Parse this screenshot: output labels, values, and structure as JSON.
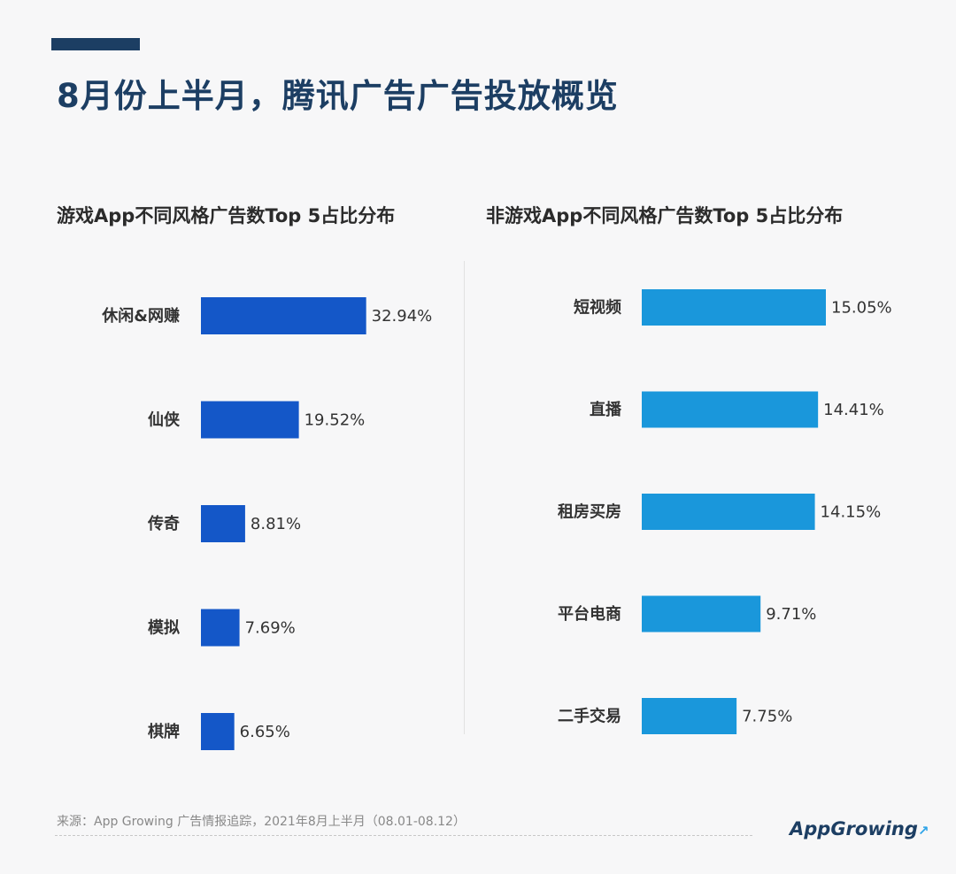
{
  "page": {
    "title": "8月份上半月，腾讯广告广告投放概览",
    "source": "来源：App Growing 广告情报追踪，2021年8月上半月（08.01-08.12）",
    "logo_text": "AppGrowing",
    "accent_color": "#1c3e63"
  },
  "chart_data": [
    {
      "type": "bar",
      "orientation": "horizontal",
      "title": "游戏App不同风格广告数Top 5占比分布",
      "categories": [
        "休闲&网赚",
        "仙侠",
        "传奇",
        "模拟",
        "棋牌"
      ],
      "values": [
        32.94,
        19.52,
        8.81,
        7.69,
        6.65
      ],
      "labels": [
        "32.94%",
        "19.52%",
        "8.81%",
        "7.69%",
        "6.65%"
      ],
      "unit": "%",
      "color": "#1457c8",
      "xlim": [
        0,
        33
      ],
      "grid": false
    },
    {
      "type": "bar",
      "orientation": "horizontal",
      "title": "非游戏App不同风格广告数Top 5占比分布",
      "categories": [
        "短视频",
        "直播",
        "租房买房",
        "平台电商",
        "二手交易"
      ],
      "values": [
        15.05,
        14.41,
        14.15,
        9.71,
        7.75
      ],
      "labels": [
        "15.05%",
        "14.41%",
        "14.15%",
        "9.71%",
        "7.75%"
      ],
      "unit": "%",
      "color": "#1a97db",
      "xlim": [
        0,
        15.05
      ],
      "grid": false
    }
  ]
}
